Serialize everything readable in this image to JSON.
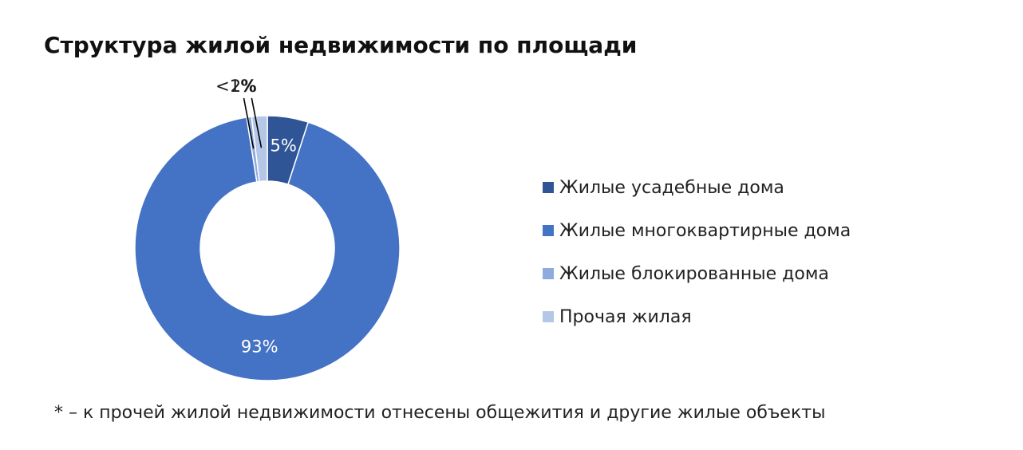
{
  "chart_data": {
    "type": "pie",
    "title": "Структура жилой недвижимости по площади",
    "series": [
      {
        "name": "Жилые усадебные дома",
        "value": 5,
        "label": "5%",
        "color": "#2f5597"
      },
      {
        "name": "Жилые многоквартирные дома",
        "value": 92.5,
        "label": "93%",
        "color": "#4472c4"
      },
      {
        "name": "Жилые блокированные дома",
        "value": 0.6,
        "label": "<1%",
        "color": "#8faadc"
      },
      {
        "name": "Прочая жилая",
        "value": 1.9,
        "label": "2%",
        "color": "#b4c7e7"
      }
    ],
    "legend_position": "right",
    "donut": true
  },
  "footnote": "* – к прочей жилой недвижимости отнесены общежития и другие жилые объекты"
}
